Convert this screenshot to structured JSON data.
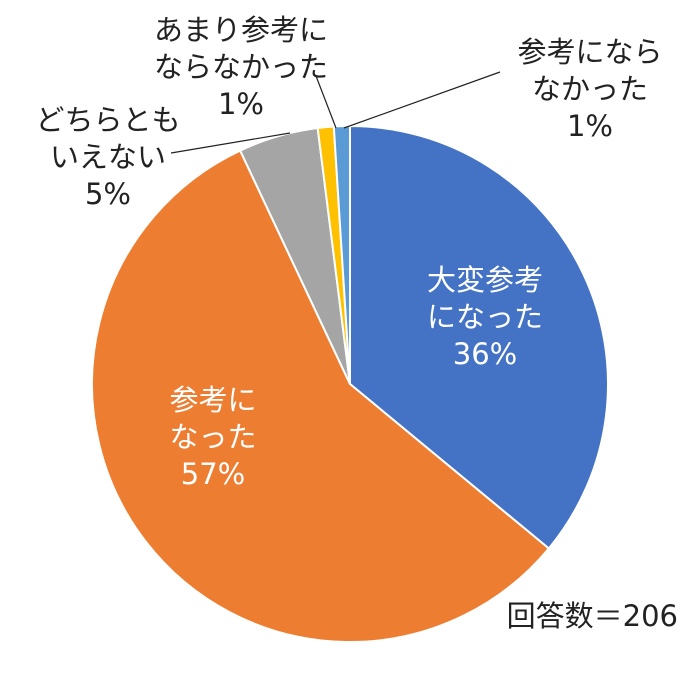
{
  "chart_data": {
    "type": "pie",
    "start_angle_deg": 0,
    "direction": "clockwise",
    "slices": [
      {
        "name": "大変参考になった",
        "value": 36,
        "label_lines": [
          "大変参考",
          "になった",
          "36%"
        ],
        "color": "#4472C4",
        "label_style": "inside"
      },
      {
        "name": "参考になった",
        "value": 57,
        "label_lines": [
          "参考に",
          "なった",
          "57%"
        ],
        "color": "#ED7D31",
        "label_style": "inside"
      },
      {
        "name": "どちらともいえない",
        "value": 5,
        "label_lines": [
          "どちらとも",
          "いえない",
          "5%"
        ],
        "color": "#A5A5A5",
        "label_style": "outside"
      },
      {
        "name": "あまり参考にならなかった",
        "value": 1,
        "label_lines": [
          "あまり参考に",
          "ならなかった",
          "1%"
        ],
        "color": "#FFC000",
        "label_style": "outside"
      },
      {
        "name": "参考にならなかった",
        "value": 1,
        "label_lines": [
          "参考になら",
          "なかった",
          "1%"
        ],
        "color": "#5B9BD5",
        "label_style": "outside"
      }
    ],
    "legend": "none",
    "note": "回答数＝206"
  }
}
